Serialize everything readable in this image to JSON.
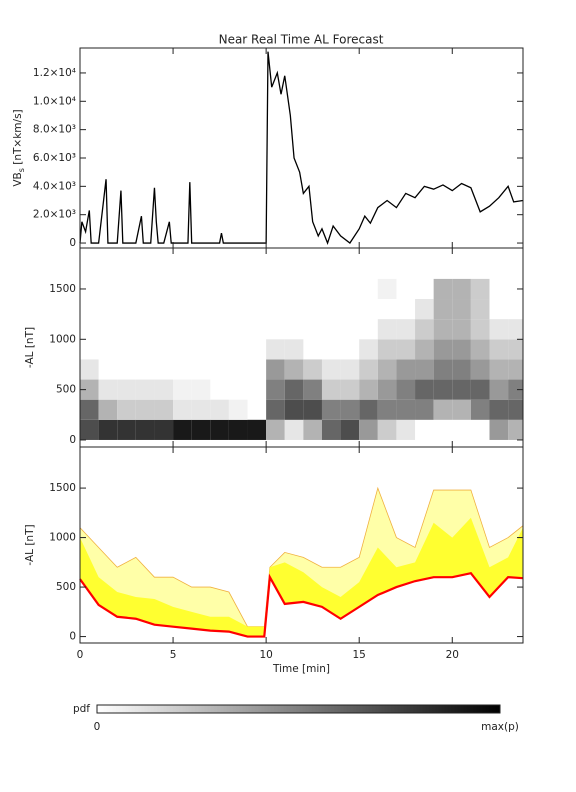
{
  "chart_data": [
    {
      "type": "line",
      "title": "Near Real Time AL Forecast",
      "y_label": {
        "main": "VB",
        "sub": "s",
        "unit": " [nT×km/s]"
      },
      "color": "#000000",
      "xlim": [
        0,
        23.8
      ],
      "ylim": [
        -350,
        13760
      ],
      "yticks": [
        0,
        {
          "value": 2000,
          "label": "2.0×10³"
        },
        {
          "value": 4000,
          "label": "4.0×10³"
        },
        {
          "value": 6000,
          "label": "6.0×10³"
        },
        {
          "value": 8000,
          "label": "8.0×10³"
        },
        {
          "value": 10000,
          "label": "1.0×10⁴"
        },
        {
          "value": 12000,
          "label": "1.2×10⁴"
        }
      ],
      "x": [
        0,
        0.1,
        0.3,
        0.5,
        0.6,
        1.0,
        1.4,
        1.5,
        2.0,
        2.2,
        2.3,
        3.0,
        3.3,
        3.4,
        3.8,
        4.0,
        4.1,
        4.2,
        4.5,
        4.8,
        4.9,
        5.8,
        5.9,
        6.0,
        7.5,
        7.6,
        7.7,
        10.0,
        10.1,
        10.3,
        10.6,
        10.8,
        11.0,
        11.3,
        11.5,
        11.8,
        12.0,
        12.3,
        12.5,
        12.8,
        13.0,
        13.3,
        13.6,
        14.0,
        14.5,
        15.0,
        15.3,
        15.6,
        16.0,
        16.5,
        17.0,
        17.5,
        18.0,
        18.5,
        19.0,
        19.5,
        20.0,
        20.5,
        21.0,
        21.5,
        22.0,
        22.5,
        23.0,
        23.3,
        23.8
      ],
      "values": [
        0,
        1500,
        800,
        2300,
        0,
        0,
        4500,
        0,
        0,
        3700,
        0,
        0,
        1900,
        0,
        0,
        3900,
        1500,
        0,
        0,
        1500,
        0,
        0,
        4300,
        0,
        0,
        700,
        0,
        0,
        13500,
        11000,
        12000,
        10500,
        11800,
        9000,
        6000,
        5000,
        3500,
        4000,
        1500,
        500,
        1000,
        0,
        1200,
        500,
        0,
        1000,
        1900,
        1400,
        2500,
        3000,
        2500,
        3500,
        3200,
        4000,
        3800,
        4100,
        3700,
        4200,
        3900,
        2200,
        2600,
        3200,
        4000,
        2900,
        3000
      ]
    },
    {
      "type": "heatmap",
      "y_label": "-AL [nT]",
      "xlim": [
        0,
        23.8
      ],
      "ylim": [
        -70,
        1907
      ],
      "yticks": [
        0,
        500,
        1000,
        1500
      ],
      "x_bins": [
        0,
        1,
        2,
        3,
        4,
        5,
        6,
        7,
        8,
        9,
        10,
        11,
        12,
        13,
        14,
        15,
        16,
        17,
        18,
        19,
        20,
        21,
        22,
        23,
        24
      ],
      "y_bins": [
        0,
        200,
        400,
        600,
        800,
        1000,
        1200,
        1400,
        1600
      ],
      "values": [
        [
          0.7,
          0.6,
          0.3,
          0.1,
          0,
          0,
          0,
          0
        ],
        [
          0.8,
          0.3,
          0.1,
          0,
          0,
          0,
          0,
          0
        ],
        [
          0.8,
          0.2,
          0.1,
          0,
          0,
          0,
          0,
          0
        ],
        [
          0.8,
          0.2,
          0.1,
          0,
          0,
          0,
          0,
          0
        ],
        [
          0.8,
          0.2,
          0.1,
          0,
          0,
          0,
          0,
          0
        ],
        [
          0.9,
          0.1,
          0.05,
          0,
          0,
          0,
          0,
          0
        ],
        [
          0.9,
          0.1,
          0.05,
          0,
          0,
          0,
          0,
          0
        ],
        [
          0.9,
          0.1,
          0,
          0,
          0,
          0,
          0,
          0
        ],
        [
          0.9,
          0.05,
          0,
          0,
          0,
          0,
          0,
          0
        ],
        [
          0.9,
          0,
          0,
          0,
          0,
          0,
          0,
          0
        ],
        [
          0.3,
          0.6,
          0.5,
          0.4,
          0.1,
          0,
          0,
          0
        ],
        [
          0.1,
          0.7,
          0.6,
          0.3,
          0.1,
          0,
          0,
          0
        ],
        [
          0.3,
          0.7,
          0.5,
          0.2,
          0,
          0,
          0,
          0
        ],
        [
          0.6,
          0.5,
          0.2,
          0.1,
          0,
          0,
          0,
          0
        ],
        [
          0.7,
          0.5,
          0.2,
          0.1,
          0,
          0,
          0,
          0
        ],
        [
          0.4,
          0.6,
          0.3,
          0.2,
          0.1,
          0,
          0,
          0
        ],
        [
          0.2,
          0.5,
          0.4,
          0.3,
          0.2,
          0.1,
          0,
          0.05
        ],
        [
          0.1,
          0.5,
          0.5,
          0.4,
          0.2,
          0.1,
          0,
          0
        ],
        [
          0,
          0.5,
          0.6,
          0.4,
          0.3,
          0.2,
          0.1,
          0
        ],
        [
          0,
          0.3,
          0.6,
          0.5,
          0.4,
          0.3,
          0.3,
          0.3
        ],
        [
          0,
          0.3,
          0.6,
          0.5,
          0.4,
          0.3,
          0.3,
          0.3
        ],
        [
          0,
          0.5,
          0.6,
          0.4,
          0.3,
          0.2,
          0.2,
          0.2
        ],
        [
          0.4,
          0.6,
          0.4,
          0.3,
          0.2,
          0.1,
          0,
          0
        ],
        [
          0.3,
          0.6,
          0.5,
          0.3,
          0.2,
          0.1,
          0,
          0
        ]
      ]
    },
    {
      "type": "band",
      "y_label": "-AL [nT]",
      "x_label": "Time [min]",
      "xlim": [
        0,
        23.8
      ],
      "ylim": [
        -65,
        1915
      ],
      "xticks": [
        0,
        5,
        10,
        15,
        20
      ],
      "yticks": [
        0,
        500,
        1000,
        1500
      ],
      "x": [
        0,
        1,
        2,
        3,
        4,
        5,
        6,
        7,
        8,
        9,
        9.9,
        10.2,
        11,
        12,
        13,
        14,
        15,
        16,
        17,
        18,
        19,
        20,
        21,
        22,
        23,
        23.8
      ],
      "series": [
        {
          "color": "#ffffa8",
          "outline": "#f0b040",
          "values": [
            1100,
            900,
            700,
            800,
            600,
            600,
            500,
            500,
            450,
            100,
            100,
            700,
            850,
            800,
            700,
            700,
            800,
            1500,
            1000,
            900,
            1480,
            1480,
            1480,
            900,
            1000,
            1120
          ]
        },
        {
          "color": "#ffff30",
          "values": [
            1000,
            600,
            450,
            400,
            380,
            300,
            250,
            200,
            200,
            100,
            100,
            700,
            750,
            650,
            500,
            400,
            550,
            900,
            700,
            750,
            1150,
            1000,
            1200,
            700,
            800,
            1100
          ]
        },
        {
          "color": "#ff0000",
          "values": [
            580,
            320,
            200,
            180,
            120,
            100,
            80,
            60,
            50,
            0,
            0,
            600,
            330,
            350,
            300,
            180,
            300,
            420,
            500,
            560,
            600,
            600,
            640,
            400,
            600,
            590
          ]
        }
      ]
    }
  ],
  "colorbar": {
    "label": "pdf",
    "min_label": "0",
    "max_label": "max(p)"
  }
}
